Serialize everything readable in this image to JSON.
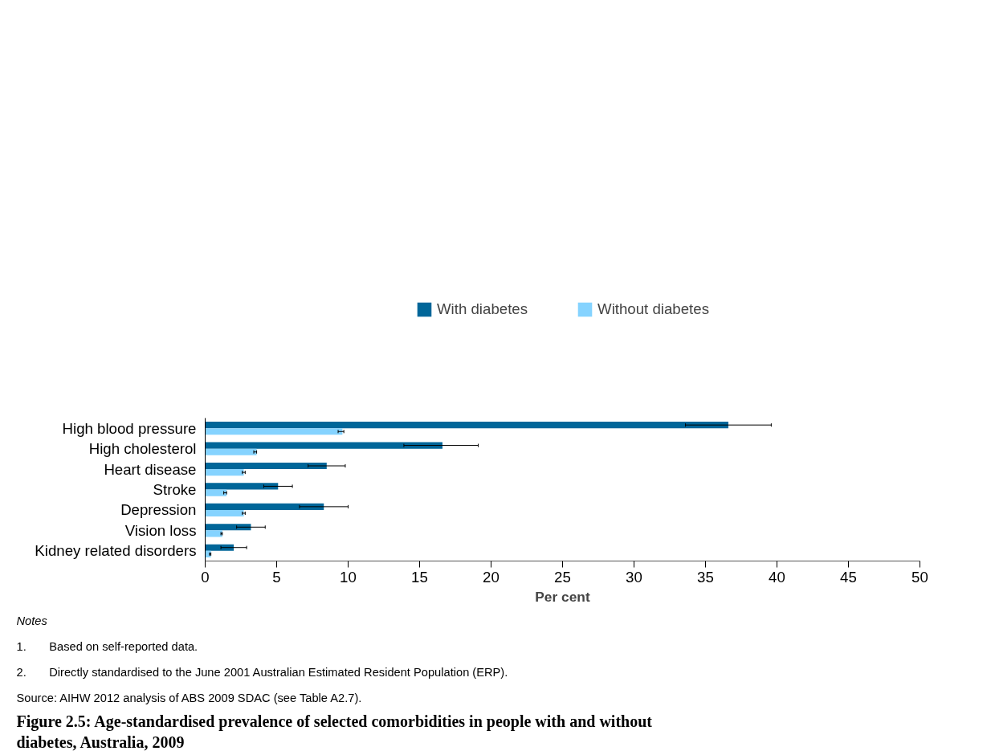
{
  "chart_data": {
    "type": "bar",
    "orientation": "horizontal",
    "title": "Figure 2.5: Age-standardised prevalence of selected comorbidities in people with and without diabetes, Australia, 2009",
    "xlabel": "Per cent",
    "categories": [
      "High blood pressure",
      "High cholesterol",
      "Heart disease",
      "Stroke",
      "Depression",
      "Vision loss",
      "Kidney related disorders"
    ],
    "series": [
      {
        "name": "With diabetes",
        "color": "#006699",
        "values": [
          36.6,
          16.6,
          8.5,
          5.1,
          8.3,
          3.2,
          2.0
        ],
        "errors": [
          [
            33.6,
            39.6
          ],
          [
            13.9,
            19.1
          ],
          [
            7.2,
            9.8
          ],
          [
            4.1,
            6.1
          ],
          [
            6.6,
            10.0
          ],
          [
            2.2,
            4.2
          ],
          [
            1.1,
            2.9
          ]
        ]
      },
      {
        "name": "Without diabetes",
        "color": "#85d3ff",
        "values": [
          9.6,
          3.6,
          2.7,
          1.5,
          2.7,
          1.2,
          0.4
        ],
        "errors": [
          [
            9.3,
            9.7
          ],
          [
            3.4,
            3.6
          ],
          [
            2.6,
            2.8
          ],
          [
            1.3,
            1.5
          ],
          [
            2.6,
            2.8
          ],
          [
            1.1,
            1.2
          ],
          [
            0.3,
            0.4
          ]
        ]
      }
    ],
    "xlim": [
      0,
      50
    ],
    "xticks": [
      0,
      5,
      10,
      15,
      20,
      25,
      30,
      35,
      40,
      45,
      50
    ],
    "grid": false,
    "legend": "top",
    "annotations": [
      "Notes",
      "1.       Based on self-reported data.",
      "2.       Directly standardised to the June 2001 Australian Estimated Resident Population (ERP).",
      "Source: AIHW 2012 analysis of ABS 2009 SDAC (see Table A2.7)."
    ]
  }
}
